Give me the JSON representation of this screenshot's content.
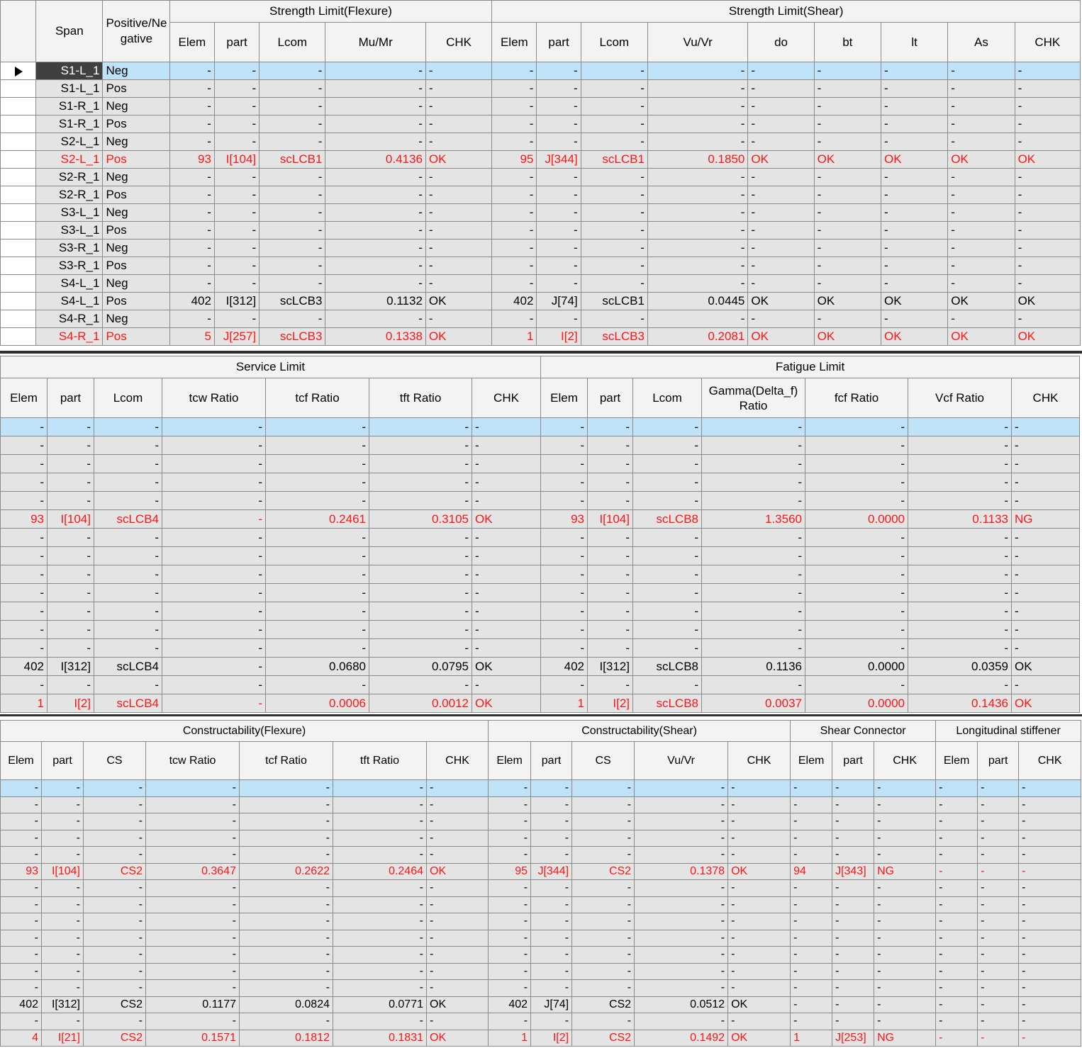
{
  "table1": {
    "group_headers": [
      {
        "text": "",
        "colspan": 1
      },
      {
        "text": "Span",
        "colspan": 1
      },
      {
        "text": "Positive/Negative",
        "colspan": 1
      },
      {
        "text": "Strength Limit(Flexure)",
        "colspan": 5
      },
      {
        "text": "Strength Limit(Shear)",
        "colspan": 9
      }
    ],
    "columns": [
      "Elem",
      "part",
      "Lcom",
      "Mu/Mr",
      "CHK",
      "Elem",
      "part",
      "Lcom",
      "Vu/Vr",
      "do",
      "bt",
      "lt",
      "As",
      "CHK"
    ],
    "rows": [
      {
        "span": "S1-L_1",
        "pn": "Neg",
        "cells": [
          "-",
          "-",
          "-",
          "-",
          "-",
          "-",
          "-",
          "-",
          "-",
          "-",
          "-",
          "-",
          "-",
          "-"
        ]
      },
      {
        "span": "S1-L_1",
        "pn": "Pos",
        "cells": [
          "-",
          "-",
          "-",
          "-",
          "-",
          "-",
          "-",
          "-",
          "-",
          "-",
          "-",
          "-",
          "-",
          "-"
        ]
      },
      {
        "span": "S1-R_1",
        "pn": "Neg",
        "cells": [
          "-",
          "-",
          "-",
          "-",
          "-",
          "-",
          "-",
          "-",
          "-",
          "-",
          "-",
          "-",
          "-",
          "-"
        ]
      },
      {
        "span": "S1-R_1",
        "pn": "Pos",
        "cells": [
          "-",
          "-",
          "-",
          "-",
          "-",
          "-",
          "-",
          "-",
          "-",
          "-",
          "-",
          "-",
          "-",
          "-"
        ]
      },
      {
        "span": "S2-L_1",
        "pn": "Neg",
        "cells": [
          "-",
          "-",
          "-",
          "-",
          "-",
          "-",
          "-",
          "-",
          "-",
          "-",
          "-",
          "-",
          "-",
          "-"
        ]
      },
      {
        "span": "S2-L_1",
        "pn": "Pos",
        "cells": [
          "93",
          "I[104]",
          "scLCB1",
          "0.4136",
          "OK",
          "95",
          "J[344]",
          "scLCB1",
          "0.1850",
          "OK",
          "OK",
          "OK",
          "OK",
          "OK"
        ]
      },
      {
        "span": "S2-R_1",
        "pn": "Neg",
        "cells": [
          "-",
          "-",
          "-",
          "-",
          "-",
          "-",
          "-",
          "-",
          "-",
          "-",
          "-",
          "-",
          "-",
          "-"
        ]
      },
      {
        "span": "S2-R_1",
        "pn": "Pos",
        "cells": [
          "-",
          "-",
          "-",
          "-",
          "-",
          "-",
          "-",
          "-",
          "-",
          "-",
          "-",
          "-",
          "-",
          "-"
        ]
      },
      {
        "span": "S3-L_1",
        "pn": "Neg",
        "cells": [
          "-",
          "-",
          "-",
          "-",
          "-",
          "-",
          "-",
          "-",
          "-",
          "-",
          "-",
          "-",
          "-",
          "-"
        ]
      },
      {
        "span": "S3-L_1",
        "pn": "Pos",
        "cells": [
          "-",
          "-",
          "-",
          "-",
          "-",
          "-",
          "-",
          "-",
          "-",
          "-",
          "-",
          "-",
          "-",
          "-"
        ]
      },
      {
        "span": "S3-R_1",
        "pn": "Neg",
        "cells": [
          "-",
          "-",
          "-",
          "-",
          "-",
          "-",
          "-",
          "-",
          "-",
          "-",
          "-",
          "-",
          "-",
          "-"
        ]
      },
      {
        "span": "S3-R_1",
        "pn": "Pos",
        "cells": [
          "-",
          "-",
          "-",
          "-",
          "-",
          "-",
          "-",
          "-",
          "-",
          "-",
          "-",
          "-",
          "-",
          "-"
        ]
      },
      {
        "span": "S4-L_1",
        "pn": "Neg",
        "cells": [
          "-",
          "-",
          "-",
          "-",
          "-",
          "-",
          "-",
          "-",
          "-",
          "-",
          "-",
          "-",
          "-",
          "-"
        ]
      },
      {
        "span": "S4-L_1",
        "pn": "Pos",
        "cells": [
          "402",
          "I[312]",
          "scLCB3",
          "0.1132",
          "OK",
          "402",
          "J[74]",
          "scLCB1",
          "0.0445",
          "OK",
          "OK",
          "OK",
          "OK",
          "OK"
        ]
      },
      {
        "span": "S4-R_1",
        "pn": "Neg",
        "cells": [
          "-",
          "-",
          "-",
          "-",
          "-",
          "-",
          "-",
          "-",
          "-",
          "-",
          "-",
          "-",
          "-",
          "-"
        ]
      },
      {
        "span": "S4-R_1",
        "pn": "Pos",
        "cells": [
          "5",
          "J[257]",
          "scLCB3",
          "0.1338",
          "OK",
          "1",
          "I[2]",
          "scLCB3",
          "0.2081",
          "OK",
          "OK",
          "OK",
          "OK",
          "OK"
        ]
      }
    ]
  },
  "table2": {
    "group_headers": [
      {
        "text": "Service Limit",
        "colspan": 7
      },
      {
        "text": "Fatigue Limit",
        "colspan": 7
      }
    ],
    "columns": [
      "Elem",
      "part",
      "Lcom",
      "tcw Ratio",
      "tcf Ratio",
      "tft Ratio",
      "CHK",
      "Elem",
      "part",
      "Lcom",
      "Gamma(Delta_f) Ratio",
      "fcf Ratio",
      "Vcf Ratio",
      "CHK"
    ],
    "rows": [
      [
        "-",
        "-",
        "-",
        "-",
        "-",
        "-",
        "-",
        "-",
        "-",
        "-",
        "-",
        "-",
        "-",
        "-"
      ],
      [
        "-",
        "-",
        "-",
        "-",
        "-",
        "-",
        "-",
        "-",
        "-",
        "-",
        "-",
        "-",
        "-",
        "-"
      ],
      [
        "-",
        "-",
        "-",
        "-",
        "-",
        "-",
        "-",
        "-",
        "-",
        "-",
        "-",
        "-",
        "-",
        "-"
      ],
      [
        "-",
        "-",
        "-",
        "-",
        "-",
        "-",
        "-",
        "-",
        "-",
        "-",
        "-",
        "-",
        "-",
        "-"
      ],
      [
        "-",
        "-",
        "-",
        "-",
        "-",
        "-",
        "-",
        "-",
        "-",
        "-",
        "-",
        "-",
        "-",
        "-"
      ],
      [
        "93",
        "I[104]",
        "scLCB4",
        "-",
        "0.2461",
        "0.3105",
        "OK",
        "93",
        "I[104]",
        "scLCB8",
        "1.3560",
        "0.0000",
        "0.1133",
        "NG"
      ],
      [
        "-",
        "-",
        "-",
        "-",
        "-",
        "-",
        "-",
        "-",
        "-",
        "-",
        "-",
        "-",
        "-",
        "-"
      ],
      [
        "-",
        "-",
        "-",
        "-",
        "-",
        "-",
        "-",
        "-",
        "-",
        "-",
        "-",
        "-",
        "-",
        "-"
      ],
      [
        "-",
        "-",
        "-",
        "-",
        "-",
        "-",
        "-",
        "-",
        "-",
        "-",
        "-",
        "-",
        "-",
        "-"
      ],
      [
        "-",
        "-",
        "-",
        "-",
        "-",
        "-",
        "-",
        "-",
        "-",
        "-",
        "-",
        "-",
        "-",
        "-"
      ],
      [
        "-",
        "-",
        "-",
        "-",
        "-",
        "-",
        "-",
        "-",
        "-",
        "-",
        "-",
        "-",
        "-",
        "-"
      ],
      [
        "-",
        "-",
        "-",
        "-",
        "-",
        "-",
        "-",
        "-",
        "-",
        "-",
        "-",
        "-",
        "-",
        "-"
      ],
      [
        "-",
        "-",
        "-",
        "-",
        "-",
        "-",
        "-",
        "-",
        "-",
        "-",
        "-",
        "-",
        "-",
        "-"
      ],
      [
        "402",
        "I[312]",
        "scLCB4",
        "-",
        "0.0680",
        "0.0795",
        "OK",
        "402",
        "I[312]",
        "scLCB8",
        "0.1136",
        "0.0000",
        "0.0359",
        "OK"
      ],
      [
        "-",
        "-",
        "-",
        "-",
        "-",
        "-",
        "-",
        "-",
        "-",
        "-",
        "-",
        "-",
        "-",
        "-"
      ],
      [
        "1",
        "I[2]",
        "scLCB4",
        "-",
        "0.0006",
        "0.0012",
        "OK",
        "1",
        "I[2]",
        "scLCB8",
        "0.0037",
        "0.0000",
        "0.1436",
        "OK"
      ]
    ]
  },
  "table3": {
    "group_headers": [
      {
        "text": "Constructability(Flexure)",
        "colspan": 7
      },
      {
        "text": "Constructability(Shear)",
        "colspan": 5
      },
      {
        "text": "Shear Connector",
        "colspan": 3
      },
      {
        "text": "Longitudinal stiffener",
        "colspan": 3
      }
    ],
    "columns": [
      "Elem",
      "part",
      "CS",
      "tcw Ratio",
      "tcf Ratio",
      "tft Ratio",
      "CHK",
      "Elem",
      "part",
      "CS",
      "Vu/Vr",
      "CHK",
      "Elem",
      "part",
      "CHK",
      "Elem",
      "part",
      "CHK"
    ],
    "rows": [
      [
        "-",
        "-",
        "-",
        "-",
        "-",
        "-",
        "-",
        "-",
        "-",
        "-",
        "-",
        "-",
        "-",
        "-",
        "-",
        "-",
        "-",
        "-"
      ],
      [
        "-",
        "-",
        "-",
        "-",
        "-",
        "-",
        "-",
        "-",
        "-",
        "-",
        "-",
        "-",
        "-",
        "-",
        "-",
        "-",
        "-",
        "-"
      ],
      [
        "-",
        "-",
        "-",
        "-",
        "-",
        "-",
        "-",
        "-",
        "-",
        "-",
        "-",
        "-",
        "-",
        "-",
        "-",
        "-",
        "-",
        "-"
      ],
      [
        "-",
        "-",
        "-",
        "-",
        "-",
        "-",
        "-",
        "-",
        "-",
        "-",
        "-",
        "-",
        "-",
        "-",
        "-",
        "-",
        "-",
        "-"
      ],
      [
        "-",
        "-",
        "-",
        "-",
        "-",
        "-",
        "-",
        "-",
        "-",
        "-",
        "-",
        "-",
        "-",
        "-",
        "-",
        "-",
        "-",
        "-"
      ],
      [
        "93",
        "I[104]",
        "CS2",
        "0.3647",
        "0.2622",
        "0.2464",
        "OK",
        "95",
        "J[344]",
        "CS2",
        "0.1378",
        "OK",
        "94",
        "J[343]",
        "NG",
        "-",
        "-",
        "-"
      ],
      [
        "-",
        "-",
        "-",
        "-",
        "-",
        "-",
        "-",
        "-",
        "-",
        "-",
        "-",
        "-",
        "-",
        "-",
        "-",
        "-",
        "-",
        "-"
      ],
      [
        "-",
        "-",
        "-",
        "-",
        "-",
        "-",
        "-",
        "-",
        "-",
        "-",
        "-",
        "-",
        "-",
        "-",
        "-",
        "-",
        "-",
        "-"
      ],
      [
        "-",
        "-",
        "-",
        "-",
        "-",
        "-",
        "-",
        "-",
        "-",
        "-",
        "-",
        "-",
        "-",
        "-",
        "-",
        "-",
        "-",
        "-"
      ],
      [
        "-",
        "-",
        "-",
        "-",
        "-",
        "-",
        "-",
        "-",
        "-",
        "-",
        "-",
        "-",
        "-",
        "-",
        "-",
        "-",
        "-",
        "-"
      ],
      [
        "-",
        "-",
        "-",
        "-",
        "-",
        "-",
        "-",
        "-",
        "-",
        "-",
        "-",
        "-",
        "-",
        "-",
        "-",
        "-",
        "-",
        "-"
      ],
      [
        "-",
        "-",
        "-",
        "-",
        "-",
        "-",
        "-",
        "-",
        "-",
        "-",
        "-",
        "-",
        "-",
        "-",
        "-",
        "-",
        "-",
        "-"
      ],
      [
        "-",
        "-",
        "-",
        "-",
        "-",
        "-",
        "-",
        "-",
        "-",
        "-",
        "-",
        "-",
        "-",
        "-",
        "-",
        "-",
        "-",
        "-"
      ],
      [
        "402",
        "I[312]",
        "CS2",
        "0.1177",
        "0.0824",
        "0.0771",
        "OK",
        "402",
        "J[74]",
        "CS2",
        "0.0512",
        "OK",
        "-",
        "-",
        "-",
        "-",
        "-",
        "-"
      ],
      [
        "-",
        "-",
        "-",
        "-",
        "-",
        "-",
        "-",
        "-",
        "-",
        "-",
        "-",
        "-",
        "-",
        "-",
        "-",
        "-",
        "-",
        "-"
      ],
      [
        "4",
        "I[21]",
        "CS2",
        "0.1571",
        "0.1812",
        "0.1831",
        "OK",
        "1",
        "I[2]",
        "CS2",
        "0.1492",
        "OK",
        "1",
        "J[253]",
        "NG",
        "-",
        "-",
        "-"
      ]
    ]
  },
  "state": {
    "selected_row": 0,
    "red_rows": [
      5,
      15
    ]
  },
  "colors": {
    "grid_line": "#8a8a8a",
    "cell_bg": "#e4e4e4",
    "header_bg": "#f3f3f3",
    "selected_row_bg": "#bfe2f8",
    "highlight_text": "#ff1414",
    "divider": "#303030"
  },
  "icons": {
    "row_selector": "triangle-right-icon"
  }
}
